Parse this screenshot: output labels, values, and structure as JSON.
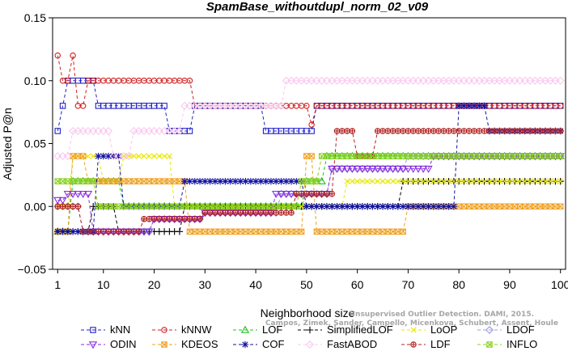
{
  "credit": {
    "line1": "Unsupervised Outlier Detection. DAMI, 2015.",
    "line2": "Campos, Zimek, Sander, Campello, Micenkova, Schubert, Assent, Houle"
  },
  "chart_data": {
    "type": "line",
    "title": "SpamBase_withoutdupl_norm_02_v09",
    "xlabel": "Neighborhood size",
    "ylabel": "Adjusted P@n",
    "xlim": [
      0,
      101
    ],
    "ylim": [
      -0.05,
      0.15
    ],
    "xticks": [
      1,
      10,
      20,
      30,
      40,
      50,
      60,
      70,
      80,
      90,
      100
    ],
    "yticks": [
      -0.05,
      0.0,
      0.05,
      0.1,
      0.15
    ],
    "ytick_labels": [
      "−0.05",
      "0.00",
      "0.05",
      "0.10",
      "0.15"
    ],
    "legend_position": "bottom",
    "series": [
      {
        "name": "kNN",
        "color": "#2020c8",
        "marker": "square",
        "segments": [
          [
            1,
            0.06
          ],
          [
            2,
            0.08
          ],
          [
            3,
            0.1
          ],
          [
            9,
            0.08
          ],
          [
            23,
            0.06
          ],
          [
            28,
            0.08
          ],
          [
            42,
            0.06
          ],
          [
            52,
            0.08
          ],
          [
            101,
            0.08
          ]
        ]
      },
      {
        "name": "kNNW",
        "color": "#d22020",
        "marker": "circle",
        "segments": [
          [
            1,
            0.12
          ],
          [
            2,
            0.1
          ],
          [
            4,
            0.12
          ],
          [
            5,
            0.08
          ],
          [
            7,
            0.1
          ],
          [
            28,
            0.08
          ],
          [
            51,
            0.065
          ],
          [
            52,
            0.08
          ],
          [
            101,
            0.08
          ]
        ]
      },
      {
        "name": "LOF",
        "color": "#20c020",
        "marker": "triangle",
        "segments": [
          [
            1,
            -0.02
          ],
          [
            4,
            0.02
          ],
          [
            14,
            0.0
          ],
          [
            50,
            0.02
          ],
          [
            54,
            0.04
          ],
          [
            101,
            0.04
          ]
        ]
      },
      {
        "name": "SimplifiedLOF",
        "color": "#000000",
        "marker": "plus",
        "segments": [
          [
            1,
            -0.02
          ],
          [
            8,
            0.0
          ],
          [
            13,
            -0.02
          ],
          [
            26,
            0.0
          ],
          [
            69,
            0.02
          ],
          [
            101,
            0.02
          ]
        ]
      },
      {
        "name": "LoOP",
        "color": "#e8e800",
        "marker": "x",
        "segments": [
          [
            1,
            0.0
          ],
          [
            4,
            0.04
          ],
          [
            10,
            0.02
          ],
          [
            14,
            0.04
          ],
          [
            24,
            0.0
          ],
          [
            58,
            0.02
          ],
          [
            101,
            0.02
          ]
        ]
      },
      {
        "name": "LDOF",
        "color": "#9b9be0",
        "marker": "diamond",
        "segments": [
          [
            1,
            0.0
          ],
          [
            6,
            -0.02
          ],
          [
            20,
            -0.01
          ],
          [
            30,
            -0.005
          ],
          [
            45,
            0.01
          ],
          [
            55,
            0.03
          ],
          [
            70,
            0.04
          ],
          [
            101,
            0.04
          ]
        ]
      },
      {
        "name": "ODIN",
        "color": "#8a2be2",
        "marker": "triangle-down",
        "segments": [
          [
            1,
            0.005
          ],
          [
            3,
            0.01
          ],
          [
            8,
            -0.02
          ],
          [
            20,
            -0.01
          ],
          [
            30,
            -0.005
          ],
          [
            44,
            0.01
          ],
          [
            55,
            0.03
          ],
          [
            75,
            0.04
          ],
          [
            100,
            0.04
          ],
          [
            101,
            0.028
          ]
        ]
      },
      {
        "name": "KDEOS",
        "color": "#f0a020",
        "marker": "square-x",
        "segments": [
          [
            1,
            -0.02
          ],
          [
            4,
            0.04
          ],
          [
            7,
            0.02
          ],
          [
            27,
            -0.02
          ],
          [
            50,
            0.04
          ],
          [
            52,
            -0.02
          ],
          [
            70,
            0.0
          ],
          [
            101,
            0.0
          ]
        ]
      },
      {
        "name": "COF",
        "color": "#1010a0",
        "marker": "star",
        "segments": [
          [
            1,
            -0.02
          ],
          [
            9,
            0.04
          ],
          [
            14,
            0.0
          ],
          [
            26,
            0.02
          ],
          [
            50,
            0.0
          ],
          [
            80,
            0.08
          ],
          [
            86,
            0.06
          ],
          [
            101,
            0.06
          ]
        ]
      },
      {
        "name": "FastABOD",
        "color": "#f8c8f0",
        "marker": "diamond",
        "segments": [
          [
            1,
            0.04
          ],
          [
            4,
            0.06
          ],
          [
            12,
            0.04
          ],
          [
            16,
            0.06
          ],
          [
            26,
            0.08
          ],
          [
            46,
            0.1
          ],
          [
            101,
            0.1
          ]
        ]
      },
      {
        "name": "LDF",
        "color": "#b02020",
        "marker": "circle-plus",
        "segments": [
          [
            1,
            0.0
          ],
          [
            6,
            -0.02
          ],
          [
            18,
            -0.01
          ],
          [
            30,
            -0.005
          ],
          [
            48,
            0.01
          ],
          [
            56,
            0.06
          ],
          [
            60,
            0.04
          ],
          [
            64,
            0.06
          ],
          [
            101,
            0.06
          ]
        ]
      },
      {
        "name": "INFLO",
        "color": "#8ad020",
        "marker": "square-x",
        "segments": [
          [
            1,
            0.02
          ],
          [
            9,
            0.0
          ],
          [
            49,
            0.02
          ],
          [
            53,
            0.04
          ],
          [
            101,
            0.04
          ]
        ]
      }
    ]
  }
}
